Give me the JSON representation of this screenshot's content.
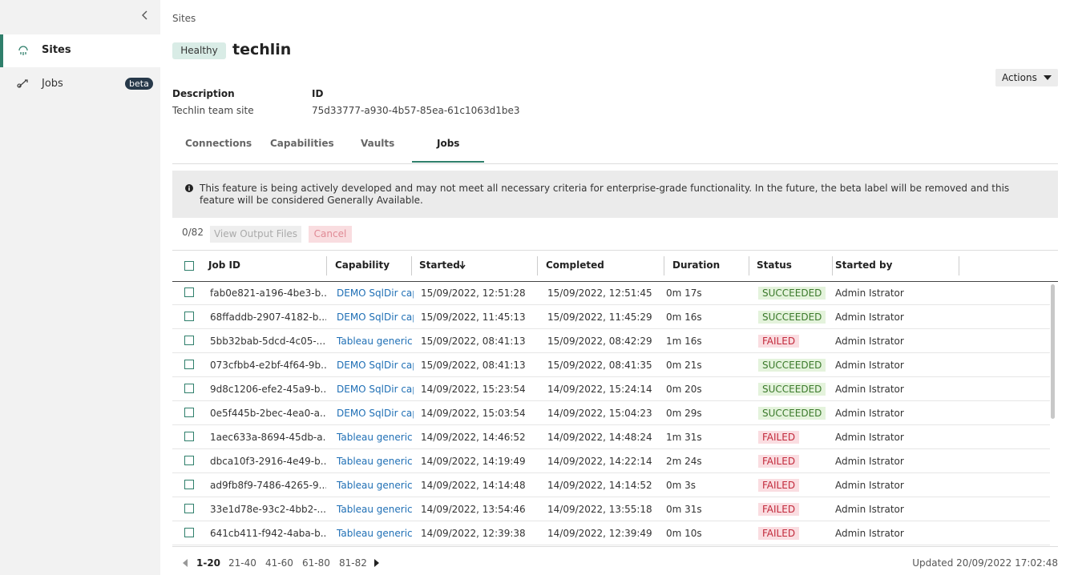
{
  "sidebar": {
    "items": [
      {
        "label": "Sites"
      },
      {
        "label": "Jobs",
        "badge": "beta"
      }
    ]
  },
  "breadcrumb": "Sites",
  "header": {
    "status": "Healthy",
    "title": "techlin",
    "actions": "Actions"
  },
  "details": [
    {
      "label": "Description",
      "value": "Techlin team site"
    },
    {
      "label": "ID",
      "value": "75d33777-a930-4b57-85ea-61c1063d1be3"
    }
  ],
  "tabs": [
    "Connections",
    "Capabilities",
    "Vaults",
    "Jobs"
  ],
  "notice": "This feature is being actively developed and may not meet all necessary criteria for enterprise-grade functionality. In the future, the beta label will be removed and this feature will be considered Generally Available.",
  "toolbar": {
    "count": "0/82",
    "buttons": [
      "View Output Files",
      "Cancel"
    ]
  },
  "table": {
    "columns": [
      "Job ID",
      "Capability",
      "Started",
      "Completed",
      "Duration",
      "Status",
      "Started by"
    ],
    "status_colors": {
      "SUCCEEDED": [
        "#e4f3dc",
        "#3b7a2b"
      ],
      "FAILED": [
        "#fadde1",
        "#c22a3c"
      ]
    },
    "rows": [
      [
        "fab0e821-a196-4be3-b...",
        "DEMO SqlDir cap",
        "15/09/2022, 12:51:28",
        "15/09/2022, 12:51:45",
        "0m 17s",
        "SUCCEEDED",
        "Admin Istrator"
      ],
      [
        "68ffaddb-2907-4182-b...",
        "DEMO SqlDir cap",
        "15/09/2022, 11:45:13",
        "15/09/2022, 11:45:29",
        "0m 16s",
        "SUCCEEDED",
        "Admin Istrator"
      ],
      [
        "5bb32bab-5dcd-4c05-...",
        "Tableau generic c",
        "15/09/2022, 08:41:13",
        "15/09/2022, 08:42:29",
        "1m 16s",
        "FAILED",
        "Admin Istrator"
      ],
      [
        "073cfbb4-e2bf-4f64-9b...",
        "DEMO SqlDir cap",
        "15/09/2022, 08:41:13",
        "15/09/2022, 08:41:35",
        "0m 21s",
        "SUCCEEDED",
        "Admin Istrator"
      ],
      [
        "9d8c1206-efe2-45a9-b...",
        "DEMO SqlDir cap",
        "14/09/2022, 15:23:54",
        "14/09/2022, 15:24:14",
        "0m 20s",
        "SUCCEEDED",
        "Admin Istrator"
      ],
      [
        "0e5f445b-2bec-4ea0-a...",
        "DEMO SqlDir cap",
        "14/09/2022, 15:03:54",
        "14/09/2022, 15:04:23",
        "0m 29s",
        "SUCCEEDED",
        "Admin Istrator"
      ],
      [
        "1aec633a-8694-45db-a...",
        "Tableau generic c",
        "14/09/2022, 14:46:52",
        "14/09/2022, 14:48:24",
        "1m 31s",
        "FAILED",
        "Admin Istrator"
      ],
      [
        "dbca10f3-2916-4e49-b...",
        "Tableau generic c",
        "14/09/2022, 14:19:49",
        "14/09/2022, 14:22:14",
        "2m 24s",
        "FAILED",
        "Admin Istrator"
      ],
      [
        "ad9fb8f9-7486-4265-9...",
        "Tableau generic c",
        "14/09/2022, 14:14:48",
        "14/09/2022, 14:14:52",
        "0m 3s",
        "FAILED",
        "Admin Istrator"
      ],
      [
        "33e1d78e-93c2-4bb2-...",
        "Tableau generic c",
        "14/09/2022, 13:54:46",
        "14/09/2022, 13:55:18",
        "0m 31s",
        "FAILED",
        "Admin Istrator"
      ],
      [
        "641cb411-f942-4aba-b...",
        "Tableau generic c",
        "14/09/2022, 12:39:38",
        "14/09/2022, 12:39:49",
        "0m 10s",
        "FAILED",
        "Admin Istrator"
      ]
    ]
  },
  "pagination": {
    "pages": [
      "1-20",
      "21-40",
      "41-60",
      "61-80",
      "81-82"
    ]
  },
  "footer": "Updated 20/09/2022 17:02:48"
}
